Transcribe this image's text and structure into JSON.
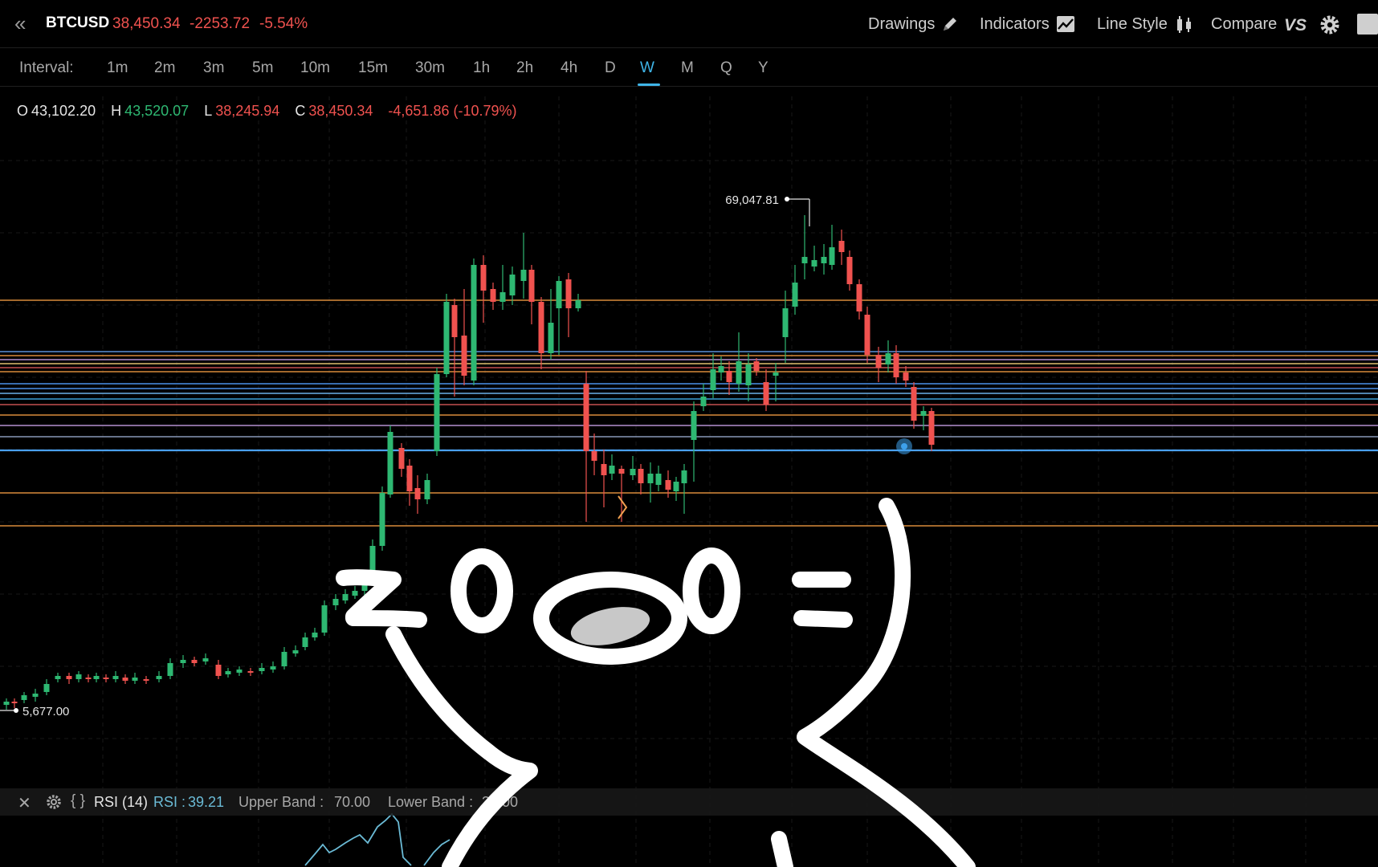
{
  "header": {
    "symbol": "BTCUSD",
    "last": "38,450.34",
    "change": "-2253.72",
    "change_pct": "-5.54%",
    "tools": {
      "drawings": "Drawings",
      "indicators": "Indicators",
      "line_style": "Line Style",
      "compare": "Compare"
    },
    "icons": [
      "double-chevron-left-icon",
      "pencil-icon",
      "indicator-chart-icon",
      "candlestick-icon",
      "vs-icon",
      "gear-icon",
      "square-icon"
    ]
  },
  "interval": {
    "label": "Interval:",
    "options": [
      "1m",
      "2m",
      "3m",
      "5m",
      "10m",
      "15m",
      "30m",
      "1h",
      "2h",
      "4h",
      "D",
      "W",
      "M",
      "Q",
      "Y"
    ],
    "selected": "W"
  },
  "ohlc": {
    "o_label": "O",
    "o": "43,102.20",
    "h_label": "H",
    "h": "43,520.07",
    "l_label": "L",
    "l": "38,245.94",
    "c_label": "C",
    "c": "38,450.34",
    "change": "-4,651.86 (-10.79%)"
  },
  "chart_data": {
    "type": "candlestick",
    "annotations": [
      {
        "label": "69,047.81",
        "value": 69047.81,
        "kind": "high"
      },
      {
        "label": "5,677.00",
        "value": 5677.0,
        "kind": "low"
      }
    ],
    "colors": {
      "up": "#2eb872",
      "down": "#f0524f",
      "background": "#000000"
    }
  },
  "rsi": {
    "title": "RSI (14)",
    "rsi_label": "RSI :",
    "rsi_value": "39.21",
    "upper_label": "Upper Band :",
    "upper_value": "70.00",
    "lower_label": "Lower Band :",
    "lower_value": "30.00"
  }
}
